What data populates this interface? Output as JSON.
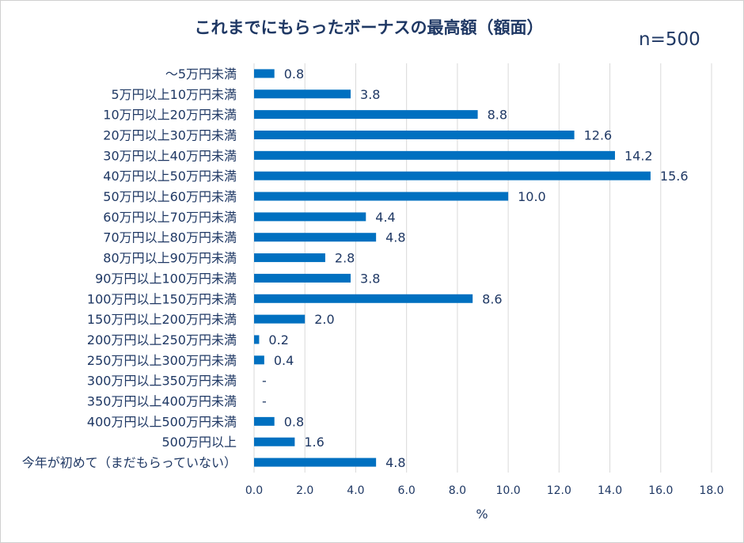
{
  "chart_data": {
    "type": "bar",
    "orientation": "horizontal",
    "title": "これまでにもらったボーナスの最高額（額面）",
    "note": "n=500",
    "xlabel": "%",
    "xlim": [
      0,
      18
    ],
    "xticks": [
      "0.0",
      "2.0",
      "4.0",
      "6.0",
      "8.0",
      "10.0",
      "12.0",
      "14.0",
      "16.0",
      "18.0"
    ],
    "grid": true,
    "color": "#0070c0",
    "categories": [
      "～5万円未満",
      "5万円以上10万円未満",
      "10万円以上20万円未満",
      "20万円以上30万円未満",
      "30万円以上40万円未満",
      "40万円以上50万円未満",
      "50万円以上60万円未満",
      "60万円以上70万円未満",
      "70万円以上80万円未満",
      "80万円以上90万円未満",
      "90万円以上100万円未満",
      "100万円以上150万円未満",
      "150万円以上200万円未満",
      "200万円以上250万円未満",
      "250万円以上300万円未満",
      "300万円以上350万円未満",
      "350万円以上400万円未満",
      "400万円以上500万円未満",
      "500万円以上",
      "今年が初めて（まだもらっていない）"
    ],
    "values": [
      0.8,
      3.8,
      8.8,
      12.6,
      14.2,
      15.6,
      10.0,
      4.4,
      4.8,
      2.8,
      3.8,
      8.6,
      2.0,
      0.2,
      0.4,
      0,
      0,
      0.8,
      1.6,
      4.8
    ],
    "labels": [
      "0.8",
      "3.8",
      "8.8",
      "12.6",
      "14.2",
      "15.6",
      "10.0",
      "4.4",
      "4.8",
      "2.8",
      "3.8",
      "8.6",
      "2.0",
      "0.2",
      "0.4",
      "-",
      "-",
      "0.8",
      "1.6",
      "4.8"
    ]
  }
}
